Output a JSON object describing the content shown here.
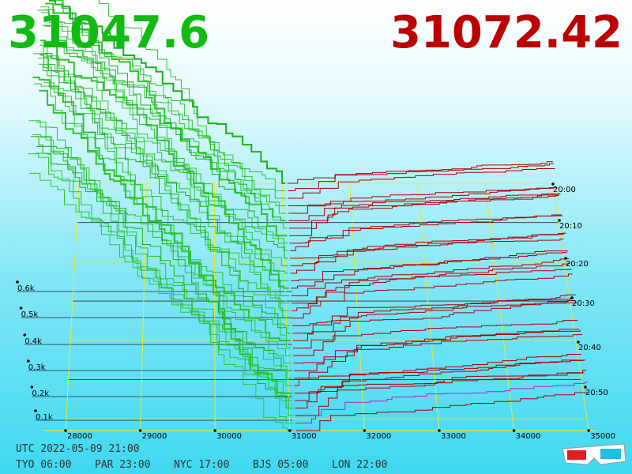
{
  "header": {
    "bid_price": "31047.6",
    "ask_price": "31072.42"
  },
  "price_axis": {
    "labels": [
      "28000",
      "29000",
      "30000",
      "31000",
      "32000",
      "33000",
      "34000",
      "35000"
    ]
  },
  "volume_axis": {
    "labels": [
      "0.6k",
      "0.5k",
      "0.4k",
      "0.3k",
      "0.2k",
      "0.1k"
    ]
  },
  "time_axis": {
    "labels": [
      "20:00",
      "20:10",
      "20:20",
      "20:30",
      "20:40",
      "20:50"
    ]
  },
  "footer": {
    "utc": "UTC 2022-05-09 21:00",
    "clocks": [
      "TYO 06:00",
      "PAR 23:00",
      "NYC 17:00",
      "BJS 05:00",
      "LON 22:00"
    ]
  }
}
